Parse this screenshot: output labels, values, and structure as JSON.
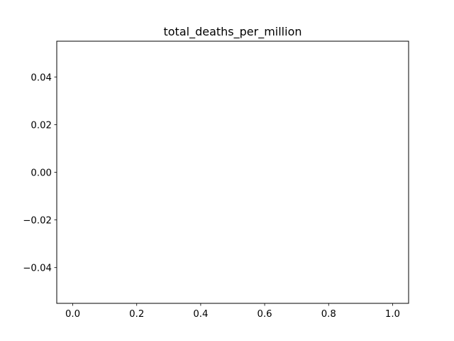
{
  "chart_data": {
    "type": "line",
    "title": "total_deaths_per_million",
    "xlabel": "",
    "ylabel": "",
    "series": [],
    "xlim": [
      -0.05,
      1.05
    ],
    "ylim": [
      -0.055,
      0.055
    ],
    "xticks": [
      0.0,
      0.2,
      0.4,
      0.6,
      0.8,
      1.0
    ],
    "xtick_labels": [
      "0.0",
      "0.2",
      "0.4",
      "0.6",
      "0.8",
      "1.0"
    ],
    "yticks": [
      0.04,
      0.02,
      0.0,
      -0.02,
      -0.04
    ],
    "ytick_labels": [
      "0.04",
      "0.02",
      "0.00",
      "−0.02",
      "−0.04"
    ],
    "grid": false,
    "legend": "none"
  }
}
